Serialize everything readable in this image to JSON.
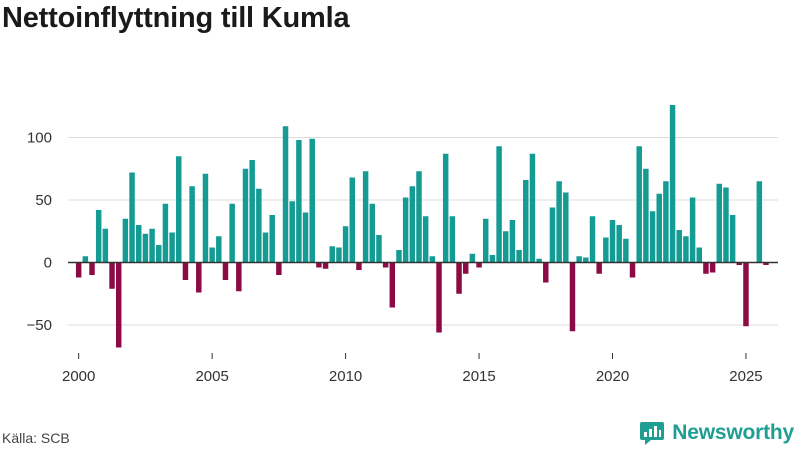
{
  "title": "Nettoinflyttning till Kumla",
  "source": "Källa: SCB",
  "brand": "Newsworthy",
  "colors": {
    "positive": "#139b94",
    "negative": "#8c0b44",
    "grid": "#dddddd",
    "zero": "#333333",
    "brand": "#1f9e92"
  },
  "chart_data": {
    "type": "bar",
    "title": "Nettoinflyttning till Kumla",
    "xlabel": "",
    "ylabel": "",
    "frequency": "quarterly",
    "start": 2000.0,
    "step": 0.25,
    "ylim": [
      -70,
      130
    ],
    "xlim": [
      1999.6,
      2026.2
    ],
    "yticks": [
      100,
      50,
      0,
      -50
    ],
    "ytick_labels": [
      "100",
      "50",
      "0",
      "−50"
    ],
    "xticks": [
      2000,
      2005,
      2010,
      2015,
      2020,
      2025
    ],
    "xtick_labels": [
      "2000",
      "2005",
      "2010",
      "2015",
      "2020",
      "2025"
    ],
    "values": [
      -12,
      5,
      -10,
      42,
      27,
      -21,
      -68,
      35,
      72,
      30,
      23,
      27,
      14,
      47,
      24,
      85,
      -14,
      61,
      -24,
      71,
      12,
      21,
      -14,
      47,
      -23,
      75,
      82,
      59,
      24,
      38,
      -10,
      109,
      49,
      98,
      40,
      99,
      -4,
      -5,
      13,
      12,
      29,
      68,
      -6,
      73,
      47,
      22,
      -4,
      -36,
      10,
      52,
      61,
      73,
      37,
      5,
      -56,
      87,
      37,
      -25,
      -9,
      7,
      -4,
      35,
      6,
      93,
      25,
      34,
      10,
      66,
      87,
      3,
      -16,
      44,
      65,
      56,
      -55,
      5,
      4,
      37,
      -9,
      20,
      34,
      30,
      19,
      -12,
      93,
      75,
      41,
      55,
      65,
      126,
      26,
      21,
      52,
      12,
      -9,
      -8,
      63,
      60,
      38,
      -2,
      -51,
      0,
      65,
      -2
    ]
  }
}
